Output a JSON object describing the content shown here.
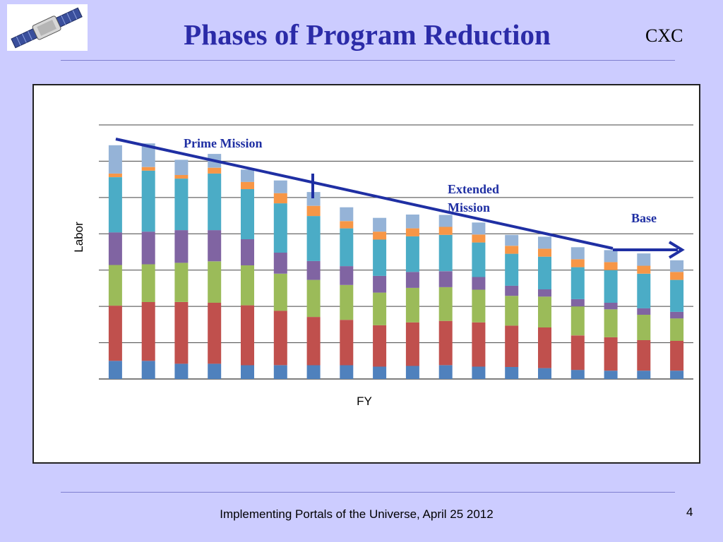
{
  "slide": {
    "title": "Phases of Program Reduction",
    "org": "CXC",
    "footer": "Implementing Portals of the Universe, April 25 2012",
    "page_number": "4",
    "logo_icon": "satellite-icon"
  },
  "chart_data": {
    "type": "bar",
    "stacked": true,
    "title": "",
    "xlabel": "FY",
    "ylabel": "Labor",
    "grid": true,
    "ylim": [
      0,
      7
    ],
    "categories": [
      "",
      "",
      "",
      "",
      "",
      "",
      "",
      "",
      "",
      "",
      "",
      "",
      "",
      "",
      "",
      "",
      "",
      ""
    ],
    "series": [
      {
        "color": "#4f81bd",
        "values": [
          0.5,
          0.5,
          0.42,
          0.42,
          0.38,
          0.38,
          0.38,
          0.38,
          0.34,
          0.36,
          0.38,
          0.34,
          0.33,
          0.3,
          0.25,
          0.23,
          0.23,
          0.23
        ]
      },
      {
        "color": "#c0504d",
        "values": [
          1.52,
          1.62,
          1.7,
          1.68,
          1.65,
          1.5,
          1.33,
          1.25,
          1.14,
          1.2,
          1.22,
          1.22,
          1.14,
          1.12,
          0.95,
          0.92,
          0.84,
          0.82
        ]
      },
      {
        "color": "#9bbb59",
        "values": [
          1.12,
          1.04,
          1.08,
          1.14,
          1.1,
          1.02,
          1.02,
          0.96,
          0.9,
          0.95,
          0.93,
          0.9,
          0.82,
          0.85,
          0.8,
          0.77,
          0.7,
          0.62
        ]
      },
      {
        "color": "#8064a2",
        "values": [
          0.9,
          0.9,
          0.9,
          0.86,
          0.72,
          0.58,
          0.52,
          0.52,
          0.46,
          0.44,
          0.44,
          0.35,
          0.28,
          0.2,
          0.2,
          0.18,
          0.18,
          0.18
        ]
      },
      {
        "color": "#4bacc6",
        "values": [
          1.52,
          1.68,
          1.42,
          1.56,
          1.38,
          1.36,
          1.24,
          1.04,
          1.0,
          0.98,
          1.0,
          0.95,
          0.88,
          0.9,
          0.88,
          0.9,
          0.95,
          0.88
        ]
      },
      {
        "color": "#f79646",
        "values": [
          0.1,
          0.1,
          0.1,
          0.16,
          0.2,
          0.28,
          0.28,
          0.2,
          0.22,
          0.22,
          0.22,
          0.22,
          0.22,
          0.22,
          0.22,
          0.22,
          0.22,
          0.22
        ]
      },
      {
        "color": "#95b3d7",
        "values": [
          0.78,
          0.65,
          0.42,
          0.38,
          0.34,
          0.35,
          0.38,
          0.38,
          0.38,
          0.38,
          0.33,
          0.33,
          0.3,
          0.33,
          0.33,
          0.33,
          0.34,
          0.32
        ]
      }
    ],
    "annotations": [
      {
        "text": "Prime Mission"
      },
      {
        "text": "Extended\nMission"
      },
      {
        "text": "Base"
      }
    ]
  }
}
